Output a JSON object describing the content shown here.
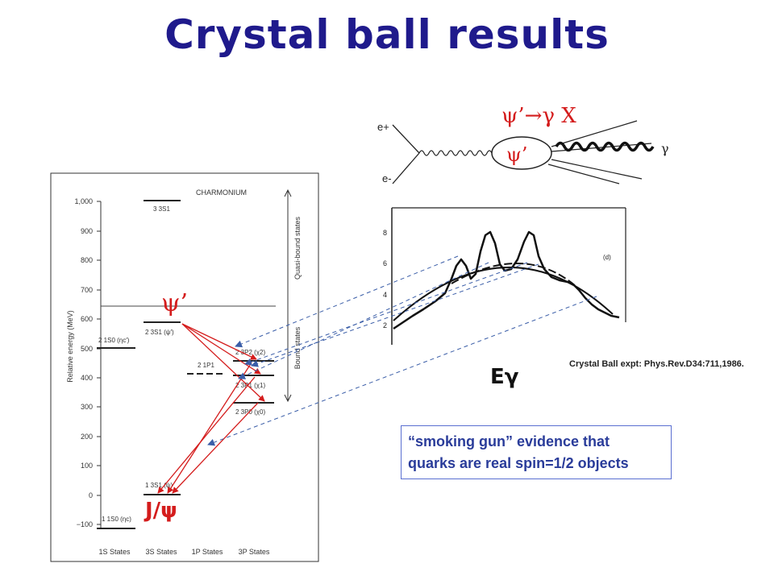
{
  "title": "Crystal ball results",
  "reference": "Crystal Ball expt: Phys.Rev.D34:711,1986.",
  "claim": {
    "line1": "“smoking gun” evidence that",
    "line2": "quarks are real spin=1/2 objects"
  },
  "feynman": {
    "process": "ψ’→γ X",
    "blob": "ψ’",
    "e_plus": "e+",
    "e_minus": "e-",
    "gamma": "γ"
  },
  "energy_label": "Eγ",
  "charmonium": {
    "heading": "CHARMONIUM",
    "y_axis_label": "Relative energy (MeV)",
    "right_label_upper": "Quasi-bound states",
    "right_label_lower": "Bound states",
    "y_ticks": [
      "1,000",
      "900",
      "800",
      "700",
      "600",
      "500",
      "400",
      "300",
      "200",
      "100",
      "0",
      "−100"
    ],
    "columns": [
      "1S States",
      "3S States",
      "1P States",
      "3P States"
    ],
    "levels": {
      "s33": "3 3S1",
      "s21": "2 1S0 (ηc′)",
      "s23": "2 3S1 (ψ′)",
      "p21": "2 1P1",
      "p32": "2 3P2 (χ2)",
      "p31": "2 3P1 (χ1)",
      "p30": "2 3P0 (χ0)",
      "s13": "1 3S1 (ψ)",
      "s11": "1 1S0 (ηc)"
    },
    "psi_prime_label": "ψ’",
    "jpsi_label": "J/ψ"
  },
  "spectrum": {
    "panel": "(d)",
    "y_ticks": [
      "8",
      "6",
      "4",
      "2"
    ]
  }
}
